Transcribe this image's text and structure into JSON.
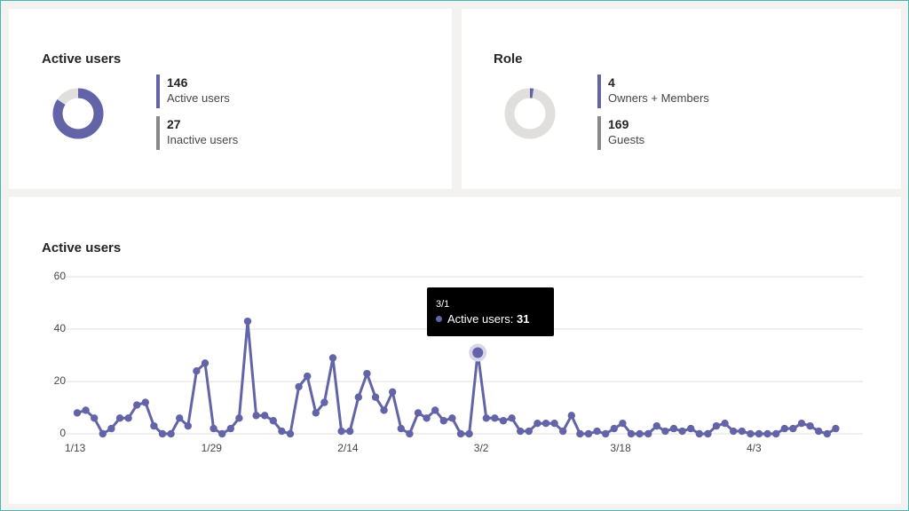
{
  "colors": {
    "accent": "#6264a7",
    "inactive": "#8a8886",
    "ring_bg": "#e1dfdd",
    "frame": "#47b6ad"
  },
  "active_users_card": {
    "title": "Active users",
    "stats": [
      {
        "value": "146",
        "label": "Active users"
      },
      {
        "value": "27",
        "label": "Inactive users"
      }
    ],
    "donut": {
      "active": 146,
      "inactive": 27
    }
  },
  "role_card": {
    "title": "Role",
    "stats": [
      {
        "value": "4",
        "label": "Owners + Members"
      },
      {
        "value": "169",
        "label": "Guests"
      }
    ],
    "donut": {
      "owners_members": 4,
      "guests": 169
    }
  },
  "chart_card": {
    "title": "Active users",
    "tooltip": {
      "date": "3/1",
      "series": "Active users:",
      "value": "31"
    }
  },
  "chart_data": {
    "type": "line",
    "title": "Active users",
    "xlabel": "",
    "ylabel": "",
    "ylim": [
      0,
      60
    ],
    "yticks": [
      "0",
      "20",
      "40",
      "60"
    ],
    "xtick_labels": [
      "1/13",
      "1/29",
      "2/14",
      "3/2",
      "3/18",
      "4/3"
    ],
    "x_start": "1/13",
    "grid": true,
    "highlight": {
      "x": "3/1",
      "y": 31
    },
    "series": [
      {
        "name": "Active users",
        "values": [
          8,
          9,
          6,
          0,
          2,
          6,
          6,
          11,
          12,
          3,
          0,
          0,
          6,
          3,
          24,
          27,
          2,
          0,
          2,
          6,
          43,
          7,
          7,
          5,
          1,
          0,
          18,
          22,
          8,
          12,
          29,
          1,
          1,
          14,
          23,
          14,
          9,
          16,
          2,
          0,
          8,
          6,
          9,
          5,
          6,
          0,
          0,
          31,
          6,
          6,
          5,
          6,
          1,
          1,
          4,
          4,
          4,
          1,
          7,
          0,
          0,
          1,
          0,
          2,
          4,
          0,
          0,
          0,
          3,
          1,
          2,
          1,
          2,
          0,
          0,
          3,
          4,
          1,
          1,
          0,
          0,
          0,
          0,
          2,
          2,
          4,
          3,
          1,
          0,
          2
        ]
      }
    ]
  }
}
